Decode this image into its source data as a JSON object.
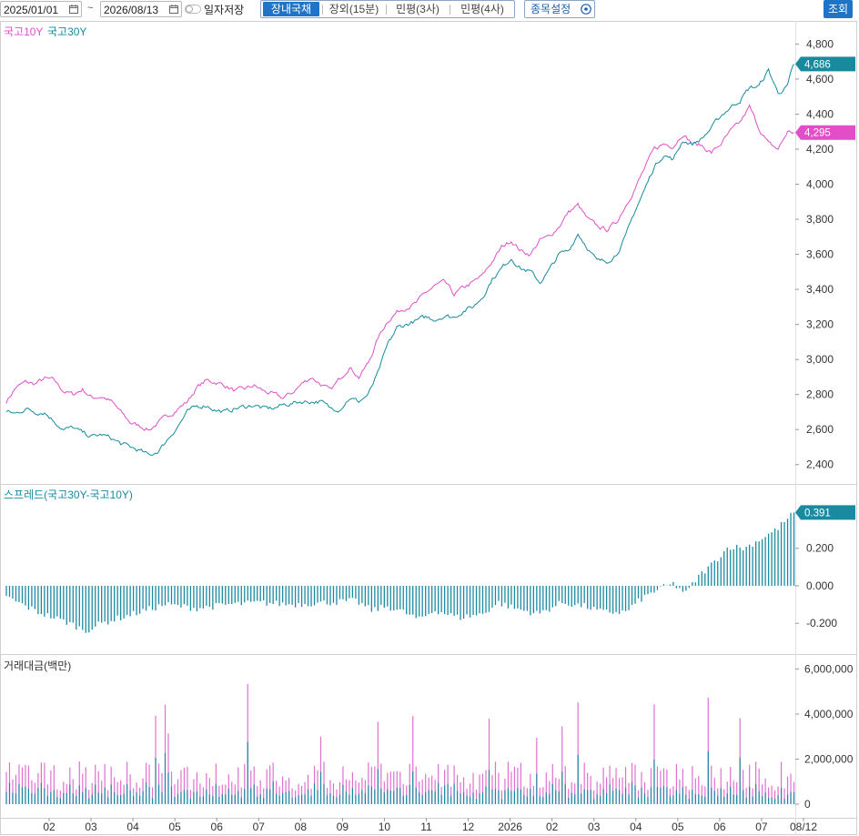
{
  "toolbar": {
    "start_date": "2025/01/01",
    "separator": "~",
    "end_date": "2026/08/13",
    "save_daily_label": "일자저장",
    "tabs": [
      "장내국채",
      "장외(15분)",
      "민평(3사)",
      "민평(4사)"
    ],
    "active_tab": 0,
    "settings_label": "종목설정",
    "search_label": "조회"
  },
  "colors": {
    "series_10y": "#e04fc8",
    "series_30y": "#178a9e",
    "spread_bar": "#1a8aa0",
    "volume_10y": "#e070d0",
    "volume_30y": "#1a8aa0",
    "accent": "#1f74c6"
  },
  "chart_data": [
    {
      "type": "line",
      "legend": [
        "국고10Y",
        "국고30Y"
      ],
      "series": [
        {
          "name": "국고10Y",
          "last_label": "4,295",
          "keypoints": [
            [
              0,
              2760
            ],
            [
              6,
              2840
            ],
            [
              12,
              2870
            ],
            [
              18,
              2860
            ],
            [
              24,
              2890
            ],
            [
              30,
              2880
            ],
            [
              36,
              2820
            ],
            [
              42,
              2800
            ],
            [
              48,
              2830
            ],
            [
              54,
              2780
            ],
            [
              60,
              2790
            ],
            [
              66,
              2760
            ],
            [
              72,
              2700
            ],
            [
              78,
              2640
            ],
            [
              84,
              2620
            ],
            [
              90,
              2600
            ],
            [
              96,
              2640
            ],
            [
              102,
              2680
            ],
            [
              108,
              2720
            ],
            [
              114,
              2760
            ],
            [
              120,
              2840
            ],
            [
              126,
              2880
            ],
            [
              132,
              2870
            ],
            [
              138,
              2850
            ],
            [
              144,
              2820
            ],
            [
              150,
              2830
            ],
            [
              156,
              2850
            ],
            [
              162,
              2820
            ],
            [
              168,
              2800
            ],
            [
              174,
              2780
            ],
            [
              180,
              2810
            ],
            [
              186,
              2860
            ],
            [
              192,
              2900
            ],
            [
              198,
              2860
            ],
            [
              204,
              2820
            ],
            [
              210,
              2890
            ],
            [
              216,
              2960
            ],
            [
              222,
              2900
            ],
            [
              228,
              2980
            ],
            [
              234,
              3120
            ],
            [
              240,
              3220
            ],
            [
              246,
              3270
            ],
            [
              252,
              3300
            ],
            [
              258,
              3320
            ],
            [
              264,
              3380
            ],
            [
              270,
              3420
            ],
            [
              276,
              3440
            ],
            [
              282,
              3370
            ],
            [
              288,
              3410
            ],
            [
              294,
              3440
            ],
            [
              300,
              3480
            ],
            [
              306,
              3560
            ],
            [
              312,
              3640
            ],
            [
              318,
              3680
            ],
            [
              324,
              3620
            ],
            [
              330,
              3600
            ],
            [
              336,
              3680
            ],
            [
              342,
              3700
            ],
            [
              348,
              3760
            ],
            [
              354,
              3840
            ],
            [
              360,
              3880
            ],
            [
              366,
              3800
            ],
            [
              372,
              3760
            ],
            [
              378,
              3740
            ],
            [
              384,
              3780
            ],
            [
              390,
              3880
            ],
            [
              396,
              3980
            ],
            [
              402,
              4090
            ],
            [
              408,
              4200
            ],
            [
              414,
              4230
            ],
            [
              420,
              4220
            ],
            [
              426,
              4290
            ],
            [
              432,
              4230
            ],
            [
              438,
              4220
            ],
            [
              444,
              4180
            ],
            [
              450,
              4230
            ],
            [
              456,
              4300
            ],
            [
              462,
              4350
            ],
            [
              468,
              4440
            ],
            [
              474,
              4320
            ],
            [
              480,
              4230
            ],
            [
              486,
              4200
            ],
            [
              492,
              4300
            ],
            [
              496,
              4295
            ]
          ]
        },
        {
          "name": "국고30Y",
          "last_label": "4,686",
          "keypoints": [
            [
              0,
              2700
            ],
            [
              6,
              2690
            ],
            [
              12,
              2720
            ],
            [
              18,
              2700
            ],
            [
              24,
              2700
            ],
            [
              30,
              2650
            ],
            [
              36,
              2600
            ],
            [
              42,
              2610
            ],
            [
              48,
              2580
            ],
            [
              54,
              2560
            ],
            [
              60,
              2570
            ],
            [
              66,
              2550
            ],
            [
              72,
              2520
            ],
            [
              78,
              2500
            ],
            [
              84,
              2480
            ],
            [
              90,
              2450
            ],
            [
              96,
              2480
            ],
            [
              102,
              2550
            ],
            [
              108,
              2620
            ],
            [
              114,
              2700
            ],
            [
              120,
              2730
            ],
            [
              126,
              2740
            ],
            [
              132,
              2710
            ],
            [
              138,
              2700
            ],
            [
              144,
              2720
            ],
            [
              150,
              2730
            ],
            [
              156,
              2740
            ],
            [
              162,
              2720
            ],
            [
              168,
              2720
            ],
            [
              174,
              2740
            ],
            [
              180,
              2750
            ],
            [
              186,
              2760
            ],
            [
              192,
              2760
            ],
            [
              198,
              2760
            ],
            [
              204,
              2720
            ],
            [
              210,
              2720
            ],
            [
              216,
              2780
            ],
            [
              222,
              2760
            ],
            [
              228,
              2800
            ],
            [
              234,
              2920
            ],
            [
              240,
              3080
            ],
            [
              246,
              3180
            ],
            [
              252,
              3200
            ],
            [
              258,
              3220
            ],
            [
              264,
              3240
            ],
            [
              270,
              3230
            ],
            [
              276,
              3250
            ],
            [
              282,
              3240
            ],
            [
              288,
              3280
            ],
            [
              294,
              3300
            ],
            [
              300,
              3360
            ],
            [
              306,
              3460
            ],
            [
              312,
              3520
            ],
            [
              318,
              3580
            ],
            [
              324,
              3520
            ],
            [
              330,
              3500
            ],
            [
              336,
              3440
            ],
            [
              342,
              3510
            ],
            [
              348,
              3600
            ],
            [
              354,
              3620
            ],
            [
              360,
              3720
            ],
            [
              366,
              3640
            ],
            [
              372,
              3560
            ],
            [
              378,
              3560
            ],
            [
              384,
              3600
            ],
            [
              390,
              3700
            ],
            [
              396,
              3850
            ],
            [
              402,
              3970
            ],
            [
              408,
              4100
            ],
            [
              414,
              4170
            ],
            [
              420,
              4140
            ],
            [
              426,
              4250
            ],
            [
              432,
              4230
            ],
            [
              438,
              4260
            ],
            [
              444,
              4320
            ],
            [
              450,
              4390
            ],
            [
              456,
              4440
            ],
            [
              462,
              4480
            ],
            [
              468,
              4550
            ],
            [
              474,
              4560
            ],
            [
              480,
              4650
            ],
            [
              486,
              4520
            ],
            [
              492,
              4560
            ],
            [
              496,
              4686
            ]
          ]
        }
      ],
      "y_ticks": [
        "2,400",
        "2,600",
        "2,800",
        "3,000",
        "3,200",
        "3,400",
        "3,600",
        "3,800",
        "4,000",
        "4,200",
        "4,400",
        "4,600",
        "4,800"
      ],
      "ylim": [
        2300,
        4880
      ]
    },
    {
      "type": "bar",
      "title": "스프레드(국고30Y-국고10Y)",
      "last_label": "0.391",
      "y_ticks": [
        "-0.200",
        "0.000",
        "0.200"
      ],
      "ylim": [
        -0.33,
        0.48
      ],
      "keypoints": [
        [
          0,
          -0.06
        ],
        [
          20,
          -0.14
        ],
        [
          40,
          -0.2
        ],
        [
          50,
          -0.24
        ],
        [
          60,
          -0.2
        ],
        [
          80,
          -0.15
        ],
        [
          100,
          -0.1
        ],
        [
          120,
          -0.12
        ],
        [
          140,
          -0.1
        ],
        [
          160,
          -0.09
        ],
        [
          180,
          -0.1
        ],
        [
          200,
          -0.09
        ],
        [
          220,
          -0.08
        ],
        [
          230,
          -0.13
        ],
        [
          240,
          -0.11
        ],
        [
          250,
          -0.14
        ],
        [
          260,
          -0.18
        ],
        [
          270,
          -0.13
        ],
        [
          285,
          -0.17
        ],
        [
          300,
          -0.15
        ],
        [
          310,
          -0.09
        ],
        [
          320,
          -0.12
        ],
        [
          335,
          -0.15
        ],
        [
          350,
          -0.09
        ],
        [
          365,
          -0.11
        ],
        [
          375,
          -0.14
        ],
        [
          390,
          -0.14
        ],
        [
          400,
          -0.07
        ],
        [
          410,
          -0.02
        ],
        [
          420,
          0.01
        ],
        [
          428,
          -0.04
        ],
        [
          436,
          0.05
        ],
        [
          445,
          0.12
        ],
        [
          455,
          0.21
        ],
        [
          465,
          0.2
        ],
        [
          475,
          0.25
        ],
        [
          485,
          0.3
        ],
        [
          496,
          0.391
        ]
      ]
    },
    {
      "type": "bar",
      "title": "거래대금(백만)",
      "y_ticks": [
        "0",
        "2,000,000",
        "4,000,000",
        "6,000,000"
      ],
      "ylim": [
        0,
        6300000
      ],
      "stacked_series": [
        "국고10Y",
        "국고30Y"
      ]
    }
  ],
  "x_axis": {
    "labels": [
      "02",
      "03",
      "04",
      "05",
      "06",
      "07",
      "08",
      "09",
      "10",
      "11",
      "12",
      "2026",
      "02",
      "03",
      "04",
      "05",
      "06",
      "07",
      "08/12"
    ]
  }
}
